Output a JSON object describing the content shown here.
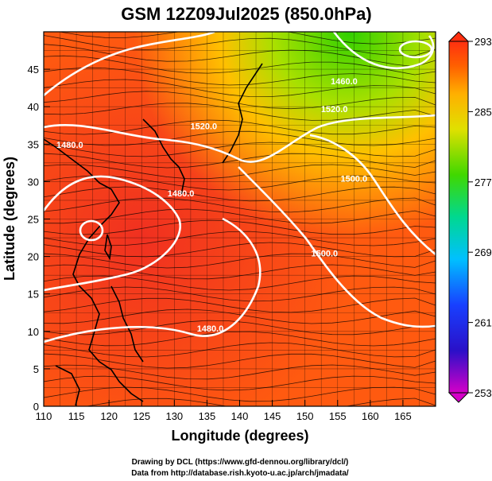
{
  "title": "GSM 12Z09Jul2025 (850.0hPa)",
  "xlabel": "Longitude (degrees)",
  "ylabel": "Latitude  (degrees)",
  "credits": [
    "Drawing by DCL (https://www.gfd-dennou.org/library/dcl/)",
    "Data from http://database.rish.kyoto-u.ac.jp/arch/jmadata/"
  ],
  "chart_data": {
    "type": "heatmap",
    "description_level": "850.0hPa",
    "x_ticks": [
      110,
      115,
      120,
      125,
      130,
      135,
      140,
      145,
      150,
      155,
      160,
      165
    ],
    "y_ticks": [
      0,
      5,
      10,
      15,
      20,
      25,
      30,
      35,
      40,
      45
    ],
    "xlim": [
      110,
      170
    ],
    "ylim": [
      0,
      50
    ],
    "colorbar": {
      "ticks": [
        253,
        261,
        269,
        277,
        285,
        293
      ],
      "range": [
        253,
        293
      ],
      "colors": [
        "#d400c8",
        "#2a00d8",
        "#0040ff",
        "#00c8ff",
        "#00e080",
        "#40d800",
        "#c8e000",
        "#ffc800",
        "#ff7000",
        "#ff3010"
      ]
    },
    "contour_labels": [
      {
        "text": "1520.0",
        "lon": 134.5,
        "lat": 37.0
      },
      {
        "text": "1520.0",
        "lon": 154.5,
        "lat": 39.3
      },
      {
        "text": "1480.0",
        "lon": 114.0,
        "lat": 34.5
      },
      {
        "text": "1480.0",
        "lon": 131.0,
        "lat": 28.0
      },
      {
        "text": "1460.0",
        "lon": 156.0,
        "lat": 43.0
      },
      {
        "text": "1500.0",
        "lon": 157.5,
        "lat": 30.0
      },
      {
        "text": "1500.0",
        "lon": 153.0,
        "lat": 20.0
      },
      {
        "text": "1480.0",
        "lon": 135.5,
        "lat": 10.0
      }
    ]
  }
}
